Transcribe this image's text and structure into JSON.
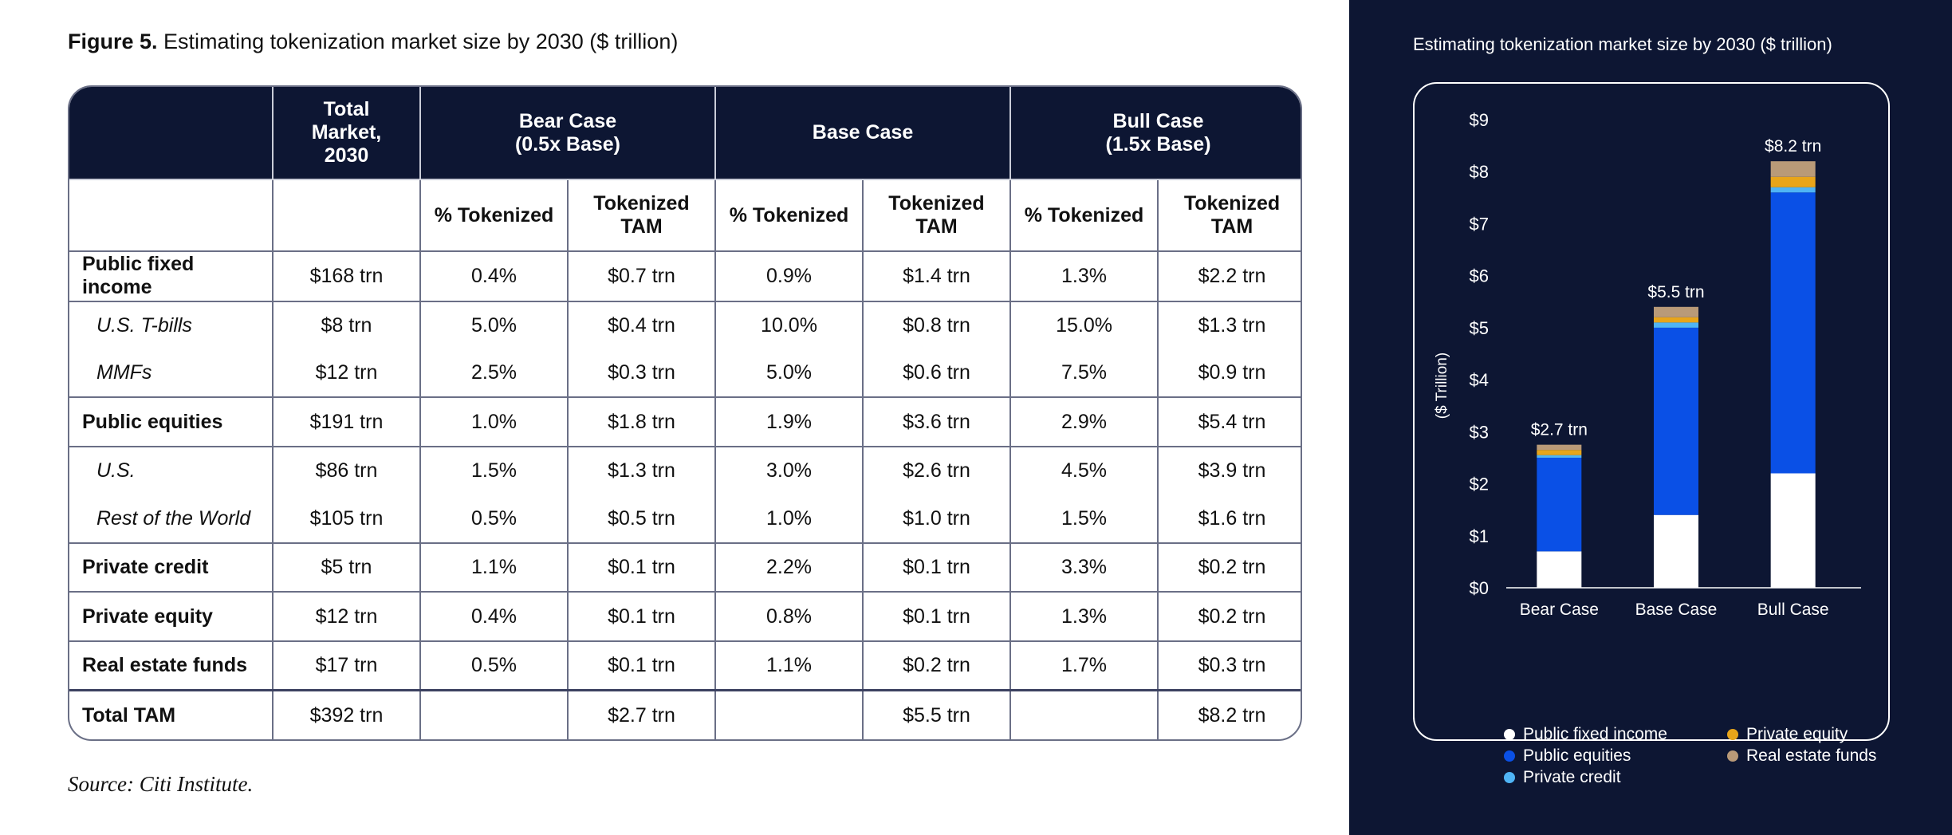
{
  "figure": {
    "label": "Figure 5.",
    "title": "Estimating tokenization market size by 2030 ($ trillion)",
    "source": "Source: Citi Institute."
  },
  "table": {
    "header": {
      "total_market": "Total Market, 2030",
      "bear": "Bear Case (0.5x Base)",
      "base": "Base Case",
      "bull": "Bull Case (1.5x Base)",
      "pct_tokenized": "% Tokenized",
      "tokenized_tam": "Tokenized TAM"
    },
    "rows": [
      {
        "label": "Public fixed income",
        "total": "$168 trn",
        "bear_pct": "0.4%",
        "bear_tam": "$0.7 trn",
        "base_pct": "0.9%",
        "base_tam": "$1.4 trn",
        "bull_pct": "1.3%",
        "bull_tam": "$2.2 trn"
      },
      {
        "label": "U.S. T-bills",
        "total": "$8 trn",
        "bear_pct": "5.0%",
        "bear_tam": "$0.4 trn",
        "base_pct": "10.0%",
        "base_tam": "$0.8 trn",
        "bull_pct": "15.0%",
        "bull_tam": "$1.3 trn"
      },
      {
        "label": "MMFs",
        "total": "$12 trn",
        "bear_pct": "2.5%",
        "bear_tam": "$0.3 trn",
        "base_pct": "5.0%",
        "base_tam": "$0.6 trn",
        "bull_pct": "7.5%",
        "bull_tam": "$0.9 trn"
      },
      {
        "label": "Public equities",
        "total": "$191 trn",
        "bear_pct": "1.0%",
        "bear_tam": "$1.8 trn",
        "base_pct": "1.9%",
        "base_tam": "$3.6 trn",
        "bull_pct": "2.9%",
        "bull_tam": "$5.4 trn"
      },
      {
        "label": "U.S.",
        "total": "$86 trn",
        "bear_pct": "1.5%",
        "bear_tam": "$1.3 trn",
        "base_pct": "3.0%",
        "base_tam": "$2.6 trn",
        "bull_pct": "4.5%",
        "bull_tam": "$3.9 trn"
      },
      {
        "label": "Rest of the World",
        "total": "$105 trn",
        "bear_pct": "0.5%",
        "bear_tam": "$0.5 trn",
        "base_pct": "1.0%",
        "base_tam": "$1.0 trn",
        "bull_pct": "1.5%",
        "bull_tam": "$1.6 trn"
      },
      {
        "label": "Private credit",
        "total": "$5 trn",
        "bear_pct": "1.1%",
        "bear_tam": "$0.1 trn",
        "base_pct": "2.2%",
        "base_tam": "$0.1 trn",
        "bull_pct": "3.3%",
        "bull_tam": "$0.2 trn"
      },
      {
        "label": "Private equity",
        "total": "$12 trn",
        "bear_pct": "0.4%",
        "bear_tam": "$0.1 trn",
        "base_pct": "0.8%",
        "base_tam": "$0.1 trn",
        "bull_pct": "1.3%",
        "bull_tam": "$0.2 trn"
      },
      {
        "label": "Real estate funds",
        "total": "$17 trn",
        "bear_pct": "0.5%",
        "bear_tam": "$0.1 trn",
        "base_pct": "1.1%",
        "base_tam": "$0.2 trn",
        "bull_pct": "1.7%",
        "bull_tam": "$0.3 trn"
      },
      {
        "label": "Total TAM",
        "total": "$392 trn",
        "bear_pct": "",
        "bear_tam": "$2.7 trn",
        "base_pct": "",
        "base_tam": "$5.5 trn",
        "bull_pct": "",
        "bull_tam": "$8.2 trn"
      }
    ]
  },
  "chart_data": {
    "type": "bar",
    "stacked": true,
    "title": "Estimating tokenization market size by 2030 ($ trillion)",
    "ylabel": "($ Trillion)",
    "xlabel": "",
    "categories": [
      "Bear Case",
      "Base Case",
      "Bull Case"
    ],
    "ylim": [
      0,
      9
    ],
    "yticks": [
      "$0",
      "$1",
      "$2",
      "$3",
      "$4",
      "$5",
      "$6",
      "$7",
      "$8",
      "$9"
    ],
    "totals_labels": [
      "$2.7 trn",
      "$5.5 trn",
      "$8.2 trn"
    ],
    "series": [
      {
        "name": "Public fixed income",
        "color": "#ffffff",
        "values": [
          0.7,
          1.4,
          2.2
        ]
      },
      {
        "name": "Public equities",
        "color": "#0a50e6",
        "values": [
          1.8,
          3.6,
          5.4
        ]
      },
      {
        "name": "Private credit",
        "color": "#4fb4f5",
        "values": [
          0.05,
          0.1,
          0.1
        ]
      },
      {
        "name": "Private equity",
        "color": "#e8a51a",
        "values": [
          0.1,
          0.1,
          0.2
        ]
      },
      {
        "name": "Real estate funds",
        "color": "#b99a78",
        "values": [
          0.1,
          0.2,
          0.3
        ]
      }
    ],
    "legend_position": "bottom",
    "grid": false
  },
  "colors": {
    "navy": "#0d1633",
    "border": "#6a6f86"
  }
}
